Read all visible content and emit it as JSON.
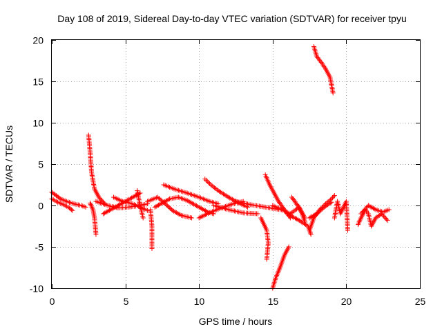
{
  "chart_data": {
    "type": "scatter",
    "title": "Day 108 of 2019, Sidereal Day-to-day VTEC variation (SDTVAR) for receiver tpyu",
    "xlabel": "GPS time / hours",
    "ylabel": "SDTVAR / TECUs",
    "xlim": [
      0,
      25
    ],
    "ylim": [
      -10,
      20
    ],
    "xticks": [
      0,
      5,
      10,
      15,
      20,
      25
    ],
    "yticks": [
      -10,
      -5,
      0,
      5,
      10,
      15,
      20
    ],
    "xtick_labels": [
      "0",
      "5",
      "10",
      "15",
      "20",
      "25"
    ],
    "ytick_labels": [
      "-10",
      "-5",
      "0",
      "5",
      "10",
      "15",
      "20"
    ],
    "grid": true,
    "marker": "+",
    "color": "#ff0000",
    "series": [
      {
        "name": "tpyu",
        "tracks": [
          [
            [
              0.0,
              1.6
            ],
            [
              0.3,
              1.2
            ],
            [
              0.6,
              0.8
            ],
            [
              1.0,
              0.5
            ],
            [
              1.5,
              0.2
            ],
            [
              2.0,
              0.0
            ],
            [
              2.3,
              -0.2
            ]
          ],
          [
            [
              0.0,
              0.8
            ],
            [
              0.4,
              0.4
            ],
            [
              0.8,
              0.1
            ],
            [
              1.2,
              -0.3
            ],
            [
              1.4,
              -0.6
            ]
          ],
          [
            [
              2.5,
              8.5
            ],
            [
              2.6,
              6.5
            ],
            [
              2.7,
              4.0
            ],
            [
              2.9,
              2.0
            ],
            [
              3.2,
              1.0
            ],
            [
              3.6,
              0.2
            ]
          ],
          [
            [
              2.6,
              0.3
            ],
            [
              2.8,
              -0.5
            ],
            [
              2.9,
              -1.5
            ],
            [
              3.0,
              -3.5
            ]
          ],
          [
            [
              3.0,
              0.5
            ],
            [
              3.8,
              0.0
            ],
            [
              4.5,
              -0.3
            ],
            [
              5.2,
              -0.2
            ],
            [
              6.0,
              0.0
            ],
            [
              6.5,
              0.2
            ]
          ],
          [
            [
              3.5,
              -1.0
            ],
            [
              4.0,
              -0.5
            ],
            [
              4.8,
              0.3
            ],
            [
              5.5,
              1.0
            ],
            [
              6.0,
              1.5
            ]
          ],
          [
            [
              4.2,
              1.0
            ],
            [
              4.8,
              0.5
            ],
            [
              5.5,
              0.2
            ],
            [
              6.0,
              -0.2
            ],
            [
              6.5,
              -0.6
            ]
          ],
          [
            [
              5.8,
              1.8
            ],
            [
              6.0,
              0.0
            ],
            [
              6.2,
              -1.5
            ]
          ],
          [
            [
              6.7,
              -0.5
            ],
            [
              6.8,
              -2.5
            ],
            [
              6.8,
              -5.2
            ]
          ],
          [
            [
              7.0,
              -0.2
            ],
            [
              7.5,
              0.3
            ],
            [
              8.0,
              0.8
            ],
            [
              8.6,
              1.0
            ],
            [
              9.2,
              0.6
            ],
            [
              10.0,
              -0.2
            ],
            [
              10.6,
              -0.8
            ],
            [
              11.0,
              -1.0
            ]
          ],
          [
            [
              6.5,
              0.5
            ],
            [
              7.2,
              1.0
            ],
            [
              7.7,
              0.2
            ],
            [
              8.2,
              -0.6
            ],
            [
              8.8,
              -1.2
            ],
            [
              9.5,
              -1.5
            ]
          ],
          [
            [
              7.6,
              2.5
            ],
            [
              8.3,
              2.0
            ],
            [
              9.2,
              1.5
            ],
            [
              10.0,
              1.0
            ],
            [
              10.7,
              0.5
            ],
            [
              11.3,
              0.2
            ]
          ],
          [
            [
              10.0,
              -1.5
            ],
            [
              10.8,
              -0.8
            ],
            [
              11.5,
              -0.3
            ],
            [
              12.3,
              0.2
            ],
            [
              13.0,
              0.5
            ]
          ],
          [
            [
              10.4,
              3.2
            ],
            [
              10.8,
              2.5
            ],
            [
              11.3,
              1.8
            ],
            [
              12.0,
              1.0
            ],
            [
              12.7,
              0.3
            ],
            [
              13.3,
              -0.2
            ]
          ],
          [
            [
              11.0,
              0.0
            ],
            [
              12.0,
              -0.5
            ],
            [
              13.0,
              -0.9
            ],
            [
              14.0,
              -1.0
            ]
          ],
          [
            [
              12.5,
              0.5
            ],
            [
              13.5,
              0.1
            ],
            [
              14.5,
              -0.2
            ],
            [
              15.5,
              -0.5
            ]
          ],
          [
            [
              14.5,
              3.7
            ],
            [
              14.8,
              2.5
            ],
            [
              15.1,
              1.5
            ],
            [
              15.4,
              0.5
            ],
            [
              15.8,
              -0.5
            ],
            [
              16.2,
              -1.5
            ]
          ],
          [
            [
              14.2,
              -1.5
            ],
            [
              14.6,
              -3.0
            ],
            [
              14.7,
              -4.5
            ],
            [
              14.6,
              -6.5
            ]
          ],
          [
            [
              15.0,
              -10.0
            ],
            [
              15.2,
              -8.8
            ],
            [
              15.5,
              -7.5
            ],
            [
              15.8,
              -6.0
            ],
            [
              16.1,
              -5.0
            ]
          ],
          [
            [
              15.0,
              0.0
            ],
            [
              15.6,
              -0.5
            ],
            [
              16.2,
              -1.0
            ],
            [
              16.8,
              -0.2
            ],
            [
              17.2,
              -1.5
            ]
          ],
          [
            [
              16.3,
              1.0
            ],
            [
              16.7,
              0.0
            ],
            [
              17.0,
              -1.0
            ],
            [
              17.2,
              -2.0
            ]
          ],
          [
            [
              16.0,
              -1.0
            ],
            [
              16.8,
              -1.8
            ],
            [
              17.4,
              -2.5
            ],
            [
              17.6,
              -3.5
            ]
          ],
          [
            [
              17.5,
              -3.0
            ],
            [
              17.8,
              -1.5
            ],
            [
              18.2,
              -0.5
            ],
            [
              18.6,
              0.2
            ],
            [
              19.0,
              0.8
            ],
            [
              19.2,
              1.2
            ]
          ],
          [
            [
              17.5,
              -1.5
            ],
            [
              18.0,
              -1.0
            ],
            [
              18.5,
              -0.2
            ],
            [
              19.0,
              0.4
            ]
          ],
          [
            [
              17.8,
              19.2
            ],
            [
              18.0,
              18.0
            ],
            [
              18.3,
              17.3
            ],
            [
              18.6,
              16.5
            ],
            [
              18.9,
              15.5
            ],
            [
              19.1,
              13.6
            ]
          ],
          [
            [
              19.2,
              -1.5
            ],
            [
              19.4,
              0.5
            ],
            [
              19.6,
              -1.0
            ],
            [
              20.0,
              0.5
            ],
            [
              20.1,
              -3.0
            ]
          ],
          [
            [
              20.8,
              -2.3
            ],
            [
              21.0,
              -1.5
            ],
            [
              21.3,
              -0.5
            ],
            [
              21.5,
              -1.0
            ],
            [
              21.7,
              -2.5
            ],
            [
              22.0,
              -1.5
            ],
            [
              22.4,
              -1.0
            ],
            [
              22.8,
              -1.8
            ]
          ],
          [
            [
              21.0,
              -1.0
            ],
            [
              21.5,
              0.0
            ],
            [
              22.0,
              -0.5
            ],
            [
              22.5,
              -0.8
            ],
            [
              22.9,
              -0.5
            ]
          ]
        ]
      }
    ]
  }
}
